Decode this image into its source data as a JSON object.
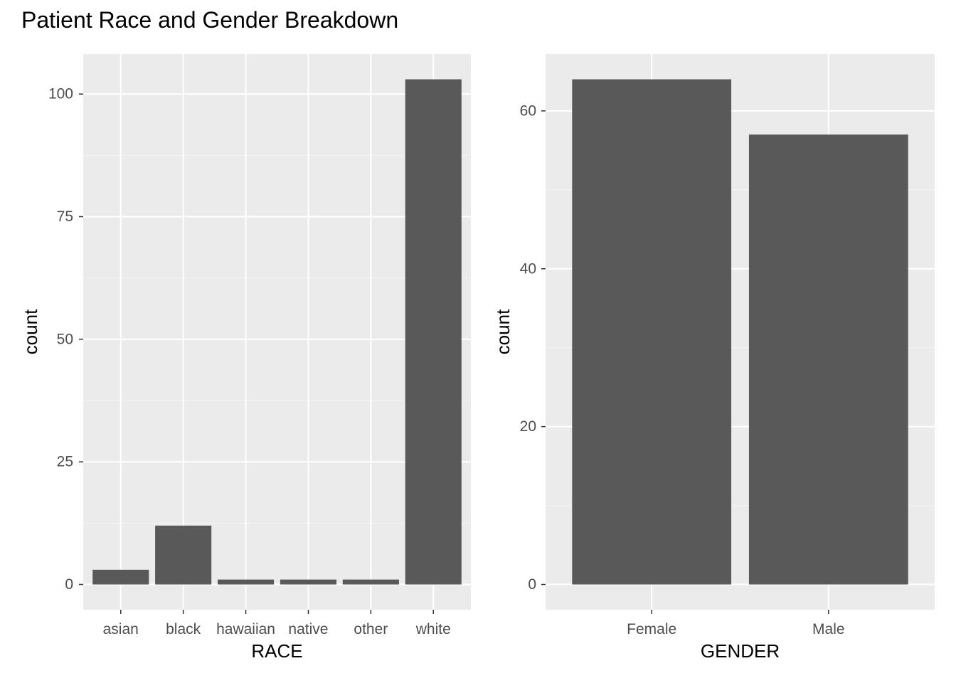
{
  "title": "Patient Race and Gender Breakdown",
  "colors": {
    "panel_background": "#ebebeb",
    "grid_major": "#ffffff",
    "grid_minor": "#f5f5f5",
    "bar_fill": "#595959",
    "tick_mark": "#333333",
    "tick_text": "#4d4d4d"
  },
  "chart_data": [
    {
      "type": "bar",
      "categories": [
        "asian",
        "black",
        "hawaiian",
        "native",
        "other",
        "white"
      ],
      "values": [
        3,
        12,
        1,
        1,
        1,
        103
      ],
      "xlabel": "RACE",
      "ylabel": "count",
      "ylim": [
        -5.15,
        108.15
      ],
      "yticks": [
        0,
        25,
        50,
        75,
        100
      ],
      "yticks_minor": [
        12.5,
        37.5,
        62.5,
        87.5
      ],
      "grid": true
    },
    {
      "type": "bar",
      "categories": [
        "Female",
        "Male"
      ],
      "values": [
        64,
        57
      ],
      "xlabel": "GENDER",
      "ylabel": "count",
      "ylim": [
        -3.2,
        67.2
      ],
      "yticks": [
        0,
        20,
        40,
        60
      ],
      "yticks_minor": [
        10,
        30,
        50
      ],
      "grid": true
    }
  ]
}
